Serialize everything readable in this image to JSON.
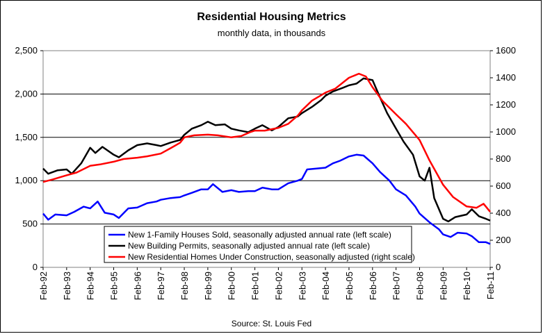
{
  "chart_data": {
    "type": "line",
    "title": "Residential Housing Metrics",
    "subtitle": "monthly data, in thousands",
    "source": "Source: St. Louis Fed",
    "x_labels": [
      "Feb-92",
      "Feb-93",
      "Feb-94",
      "Feb-95",
      "Feb-96",
      "Feb-97",
      "Feb-98",
      "Feb-99",
      "Feb-00",
      "Feb-01",
      "Feb-02",
      "Feb-03",
      "Feb-04",
      "Feb-05",
      "Feb-06",
      "Feb-07",
      "Feb-08",
      "Feb-09",
      "Feb-10",
      "Feb-11"
    ],
    "y_left": {
      "min": 0,
      "max": 2500,
      "step": 500,
      "tick_labels": [
        "0",
        "500",
        "1,000",
        "1,500",
        "2,000",
        "2,500"
      ]
    },
    "y_right": {
      "min": 0,
      "max": 1600,
      "step": 200,
      "tick_labels": [
        "0",
        "200",
        "400",
        "600",
        "800",
        "1000",
        "1200",
        "1400",
        "1600"
      ]
    },
    "grid": "horizontal",
    "legend_position": "bottom-center",
    "series": [
      {
        "name": "New 1-Family Houses Sold, seasonally adjusted annual rate (left scale)",
        "color": "#0000ff",
        "axis": "left",
        "points": [
          [
            1992.08,
            620
          ],
          [
            1992.3,
            550
          ],
          [
            1992.6,
            610
          ],
          [
            1993.08,
            600
          ],
          [
            1993.4,
            640
          ],
          [
            1993.8,
            700
          ],
          [
            1994.08,
            680
          ],
          [
            1994.4,
            760
          ],
          [
            1994.7,
            630
          ],
          [
            1995.08,
            610
          ],
          [
            1995.3,
            570
          ],
          [
            1995.7,
            680
          ],
          [
            1996.08,
            690
          ],
          [
            1996.5,
            740
          ],
          [
            1996.9,
            760
          ],
          [
            1997.08,
            780
          ],
          [
            1997.5,
            800
          ],
          [
            1997.9,
            810
          ],
          [
            1998.08,
            830
          ],
          [
            1998.4,
            860
          ],
          [
            1998.8,
            900
          ],
          [
            1999.08,
            900
          ],
          [
            1999.3,
            960
          ],
          [
            1999.7,
            870
          ],
          [
            2000.08,
            890
          ],
          [
            2000.4,
            870
          ],
          [
            2000.8,
            880
          ],
          [
            2001.08,
            880
          ],
          [
            2001.4,
            920
          ],
          [
            2001.8,
            900
          ],
          [
            2002.08,
            900
          ],
          [
            2002.5,
            970
          ],
          [
            2002.9,
            1000
          ],
          [
            2003.08,
            1020
          ],
          [
            2003.3,
            1130
          ],
          [
            2003.7,
            1140
          ],
          [
            2004.08,
            1150
          ],
          [
            2004.4,
            1200
          ],
          [
            2004.7,
            1230
          ],
          [
            2005.08,
            1280
          ],
          [
            2005.4,
            1300
          ],
          [
            2005.7,
            1290
          ],
          [
            2006.08,
            1200
          ],
          [
            2006.4,
            1100
          ],
          [
            2006.8,
            1000
          ],
          [
            2007.08,
            900
          ],
          [
            2007.5,
            830
          ],
          [
            2007.9,
            700
          ],
          [
            2008.08,
            620
          ],
          [
            2008.5,
            520
          ],
          [
            2008.9,
            440
          ],
          [
            2009.08,
            380
          ],
          [
            2009.4,
            350
          ],
          [
            2009.7,
            400
          ],
          [
            2010.08,
            390
          ],
          [
            2010.3,
            360
          ],
          [
            2010.6,
            290
          ],
          [
            2010.9,
            290
          ],
          [
            2011.08,
            270
          ]
        ]
      },
      {
        "name": "New Building Permits, seasonally adjusted annual rate (left scale)",
        "color": "#000000",
        "axis": "left",
        "points": [
          [
            1992.08,
            1140
          ],
          [
            1992.3,
            1080
          ],
          [
            1992.7,
            1120
          ],
          [
            1993.08,
            1130
          ],
          [
            1993.3,
            1080
          ],
          [
            1993.7,
            1200
          ],
          [
            1994.08,
            1380
          ],
          [
            1994.3,
            1320
          ],
          [
            1994.6,
            1390
          ],
          [
            1995.08,
            1300
          ],
          [
            1995.3,
            1270
          ],
          [
            1995.7,
            1350
          ],
          [
            1996.08,
            1410
          ],
          [
            1996.5,
            1430
          ],
          [
            1996.9,
            1410
          ],
          [
            1997.08,
            1400
          ],
          [
            1997.5,
            1440
          ],
          [
            1997.9,
            1470
          ],
          [
            1998.08,
            1530
          ],
          [
            1998.4,
            1600
          ],
          [
            1998.8,
            1640
          ],
          [
            1999.08,
            1680
          ],
          [
            1999.4,
            1640
          ],
          [
            1999.8,
            1650
          ],
          [
            2000.08,
            1600
          ],
          [
            2000.4,
            1580
          ],
          [
            2000.8,
            1560
          ],
          [
            2001.08,
            1600
          ],
          [
            2001.4,
            1640
          ],
          [
            2001.8,
            1580
          ],
          [
            2002.08,
            1620
          ],
          [
            2002.5,
            1720
          ],
          [
            2002.9,
            1740
          ],
          [
            2003.08,
            1780
          ],
          [
            2003.5,
            1850
          ],
          [
            2003.9,
            1930
          ],
          [
            2004.08,
            1980
          ],
          [
            2004.4,
            2030
          ],
          [
            2004.8,
            2070
          ],
          [
            2005.08,
            2100
          ],
          [
            2005.4,
            2120
          ],
          [
            2005.7,
            2180
          ],
          [
            2006.08,
            2160
          ],
          [
            2006.4,
            1960
          ],
          [
            2006.7,
            1780
          ],
          [
            2007.08,
            1600
          ],
          [
            2007.4,
            1450
          ],
          [
            2007.8,
            1300
          ],
          [
            2008.08,
            1050
          ],
          [
            2008.3,
            1000
          ],
          [
            2008.5,
            1150
          ],
          [
            2008.7,
            800
          ],
          [
            2009.08,
            560
          ],
          [
            2009.3,
            530
          ],
          [
            2009.6,
            580
          ],
          [
            2010.08,
            610
          ],
          [
            2010.3,
            670
          ],
          [
            2010.6,
            590
          ],
          [
            2010.9,
            560
          ],
          [
            2011.08,
            540
          ]
        ]
      },
      {
        "name": "New Residential Homes Under Construction, seasonally adjusted (right scale)",
        "color": "#ff0000",
        "axis": "right",
        "points": [
          [
            1992.08,
            630
          ],
          [
            1992.5,
            650
          ],
          [
            1993.08,
            680
          ],
          [
            1993.5,
            700
          ],
          [
            1994.08,
            750
          ],
          [
            1994.5,
            760
          ],
          [
            1995.08,
            780
          ],
          [
            1995.5,
            800
          ],
          [
            1996.08,
            810
          ],
          [
            1996.5,
            820
          ],
          [
            1997.08,
            840
          ],
          [
            1997.5,
            880
          ],
          [
            1997.9,
            920
          ],
          [
            1998.08,
            960
          ],
          [
            1998.5,
            975
          ],
          [
            1999.08,
            980
          ],
          [
            1999.5,
            975
          ],
          [
            2000.08,
            960
          ],
          [
            2000.5,
            970
          ],
          [
            2000.9,
            1000
          ],
          [
            2001.08,
            1010
          ],
          [
            2001.5,
            1010
          ],
          [
            2002.08,
            1030
          ],
          [
            2002.5,
            1060
          ],
          [
            2002.9,
            1120
          ],
          [
            2003.08,
            1160
          ],
          [
            2003.5,
            1230
          ],
          [
            2004.08,
            1290
          ],
          [
            2004.5,
            1320
          ],
          [
            2005.08,
            1400
          ],
          [
            2005.5,
            1430
          ],
          [
            2005.8,
            1410
          ],
          [
            2006.08,
            1330
          ],
          [
            2006.5,
            1230
          ],
          [
            2007.08,
            1130
          ],
          [
            2007.5,
            1060
          ],
          [
            2008.08,
            940
          ],
          [
            2008.5,
            790
          ],
          [
            2009.08,
            610
          ],
          [
            2009.5,
            520
          ],
          [
            2010.08,
            450
          ],
          [
            2010.5,
            440
          ],
          [
            2010.8,
            470
          ],
          [
            2011.08,
            410
          ]
        ]
      }
    ]
  }
}
